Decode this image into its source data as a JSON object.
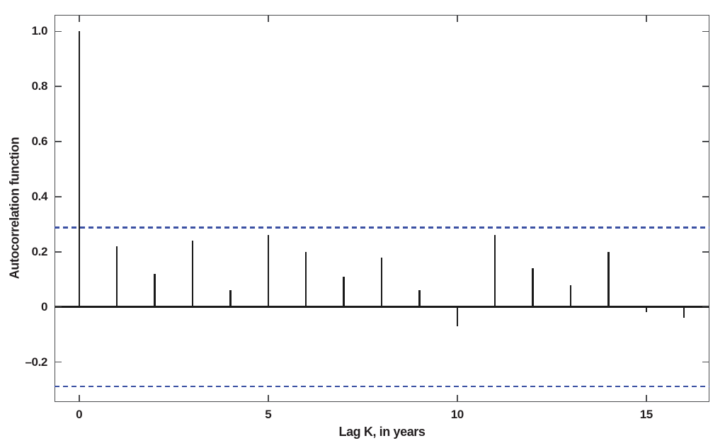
{
  "figure": {
    "background": "#ffffff"
  },
  "chart_data": {
    "type": "stem",
    "title": "",
    "xlabel": "Lag K, in years",
    "ylabel": "Autocorrelation function",
    "x": [
      0,
      1,
      2,
      3,
      4,
      5,
      6,
      7,
      8,
      9,
      10,
      11,
      12,
      13,
      14,
      15,
      16
    ],
    "values": [
      1.0,
      0.22,
      0.12,
      0.24,
      0.06,
      0.26,
      0.2,
      0.11,
      0.18,
      0.06,
      -0.07,
      0.26,
      0.14,
      0.08,
      0.2,
      -0.02,
      -0.04
    ],
    "confidence_bounds": {
      "upper": 0.288,
      "lower": -0.288,
      "line_style": "dashed",
      "color": "#3b51a3"
    },
    "xlim": [
      -0.65,
      16.67
    ],
    "ylim": [
      -0.345,
      1.06
    ],
    "yticks": [
      1.0,
      0.8,
      0.6,
      0.4,
      0.2,
      0,
      -0.2
    ],
    "ytick_labels": [
      "1.0",
      "0.8",
      "0.6",
      "0.4",
      "0.2",
      "0",
      "–0.2"
    ],
    "xticks": [
      0,
      5,
      10,
      15
    ],
    "xtick_labels": [
      "0",
      "5",
      "10",
      "15"
    ],
    "grid": false,
    "legend": null,
    "stem_color": "#1a1a1a",
    "zero_line_color": "#1a1a1a",
    "axis_color": "#4d4e50",
    "text_color": "#231f20"
  }
}
